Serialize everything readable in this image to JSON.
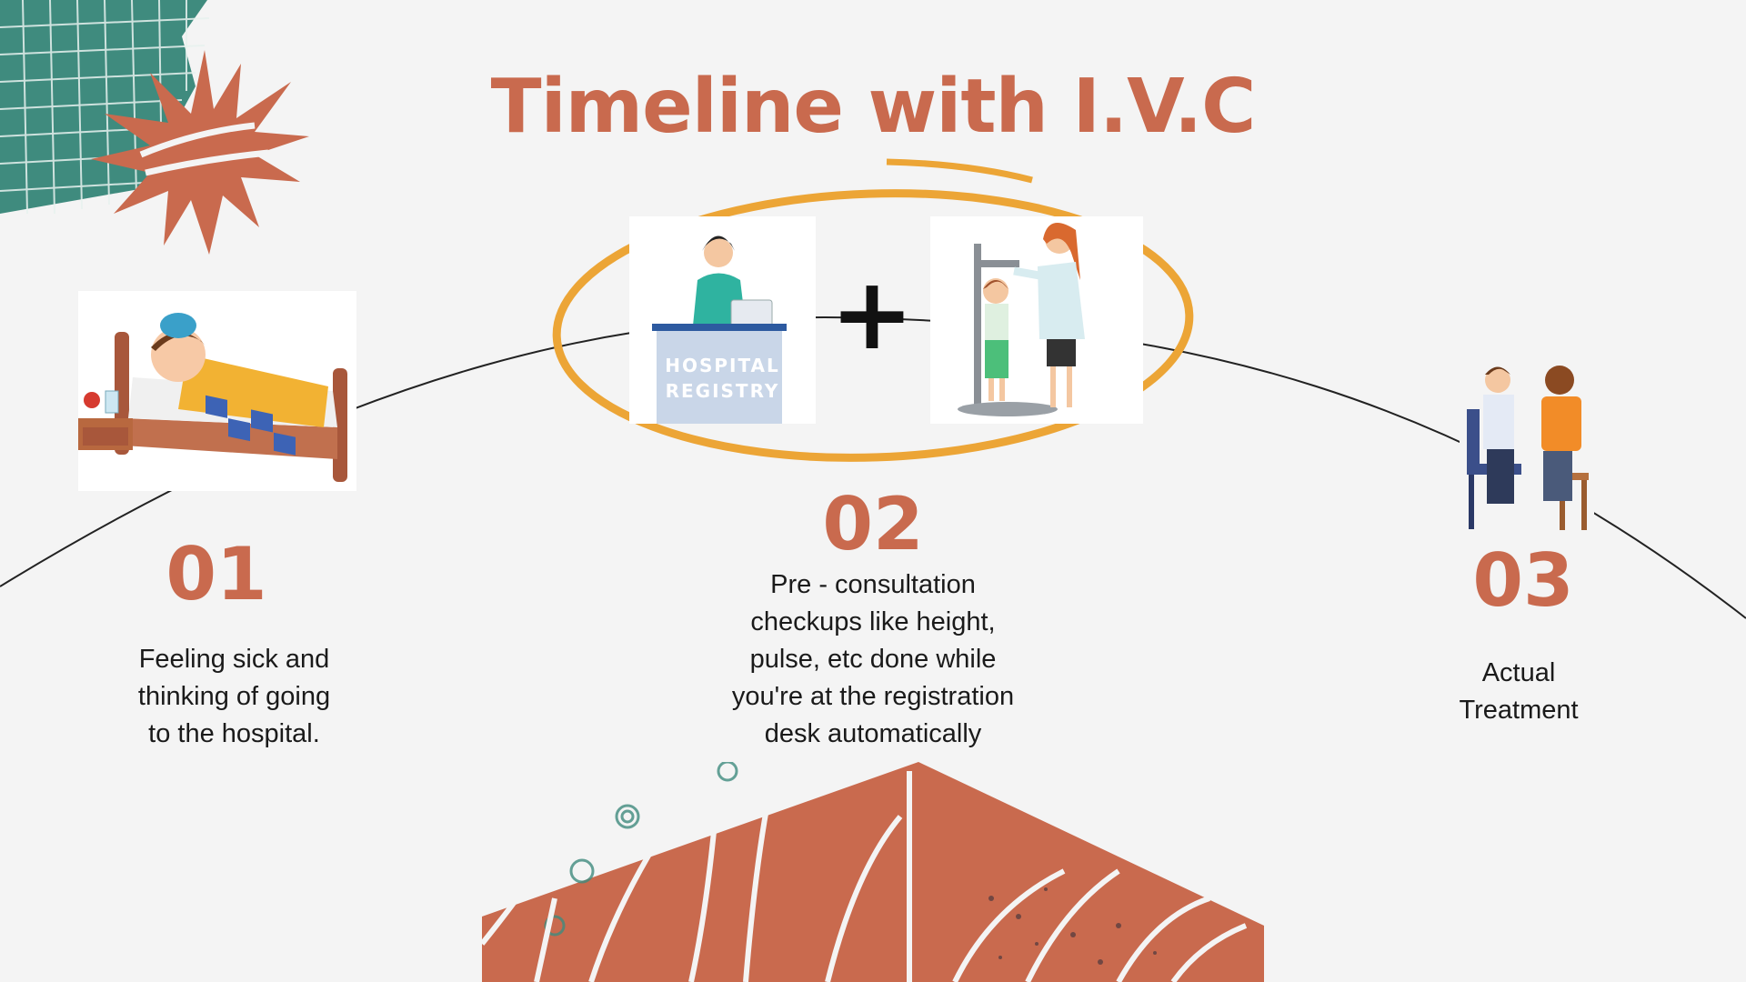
{
  "title": "Timeline with I.V.C",
  "colors": {
    "accent": "#c96a4e",
    "teal": "#3f8b7e",
    "ring": "#eca536",
    "background": "#f4f4f4"
  },
  "steps": [
    {
      "number": "01",
      "text_lines": [
        "Feeling sick and",
        "thinking of going",
        "to the hospital."
      ],
      "icon": "sick-boy-in-bed-icon"
    },
    {
      "number": "02",
      "text_lines": [
        "Pre - consultation",
        "checkups like height,",
        "pulse, etc done while",
        "you're at the registration",
        "desk automatically"
      ],
      "icon": "registry-and-checkup-icons"
    },
    {
      "number": "03",
      "text_lines": [
        "Actual",
        "Treatment"
      ],
      "icon": "doctor-patient-icon"
    }
  ],
  "registry_sign": {
    "line1": "HOSPITAL",
    "line2": "REGISTRY"
  },
  "connector_symbol": "+"
}
